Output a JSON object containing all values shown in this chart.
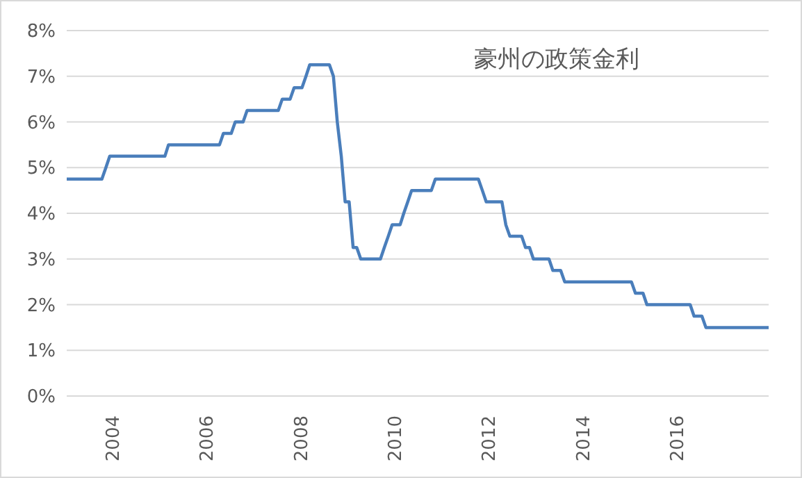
{
  "chart_data": {
    "type": "line",
    "title": "豪州の政策金利",
    "x": [
      "2003-01",
      "2003-10",
      "2003-11",
      "2003-12",
      "2005-02",
      "2005-03",
      "2006-04",
      "2006-05",
      "2006-07",
      "2006-08",
      "2006-10",
      "2006-11",
      "2007-07",
      "2007-08",
      "2007-10",
      "2007-11",
      "2008-01",
      "2008-02",
      "2008-03",
      "2008-08",
      "2008-09",
      "2008-10",
      "2008-11",
      "2008-12",
      "2009-01",
      "2009-02",
      "2009-03",
      "2009-04",
      "2009-09",
      "2009-10",
      "2009-11",
      "2009-12",
      "2010-02",
      "2010-03",
      "2010-04",
      "2010-05",
      "2010-10",
      "2010-11",
      "2011-10",
      "2011-11",
      "2011-12",
      "2012-04",
      "2012-05",
      "2012-06",
      "2012-09",
      "2012-10",
      "2012-11",
      "2012-12",
      "2013-04",
      "2013-05",
      "2013-07",
      "2013-08",
      "2015-01",
      "2015-02",
      "2015-04",
      "2015-05",
      "2016-04",
      "2016-05",
      "2016-07",
      "2016-08",
      "2017-12"
    ],
    "series": [
      {
        "color": "#4a7ebb",
        "values": [
          4.75,
          4.75,
          5.0,
          5.25,
          5.25,
          5.5,
          5.5,
          5.75,
          5.75,
          6.0,
          6.0,
          6.25,
          6.25,
          6.5,
          6.5,
          6.75,
          6.75,
          7.0,
          7.25,
          7.25,
          7.0,
          6.0,
          5.25,
          4.25,
          4.25,
          3.25,
          3.25,
          3.0,
          3.0,
          3.25,
          3.5,
          3.75,
          3.75,
          4.0,
          4.25,
          4.5,
          4.5,
          4.75,
          4.75,
          4.5,
          4.25,
          4.25,
          3.75,
          3.5,
          3.5,
          3.25,
          3.25,
          3.0,
          3.0,
          2.75,
          2.75,
          2.5,
          2.5,
          2.25,
          2.25,
          2.0,
          2.0,
          1.75,
          1.75,
          1.5,
          1.5
        ]
      }
    ],
    "xlim": [
      "2003-01",
      "2017-12"
    ],
    "xticks": [
      {
        "value": "2004",
        "label": "2004"
      },
      {
        "value": "2006",
        "label": "2006"
      },
      {
        "value": "2008",
        "label": "2008"
      },
      {
        "value": "2010",
        "label": "2010"
      },
      {
        "value": "2012",
        "label": "2012"
      },
      {
        "value": "2014",
        "label": "2014"
      },
      {
        "value": "2016",
        "label": "2016"
      }
    ],
    "ylim": [
      0,
      8
    ],
    "yticks": [
      {
        "value": 0,
        "label": "0%"
      },
      {
        "value": 1,
        "label": "1%"
      },
      {
        "value": 2,
        "label": "2%"
      },
      {
        "value": 3,
        "label": "3%"
      },
      {
        "value": 4,
        "label": "4%"
      },
      {
        "value": 5,
        "label": "5%"
      },
      {
        "value": 6,
        "label": "6%"
      },
      {
        "value": 7,
        "label": "7%"
      },
      {
        "value": 8,
        "label": "8%"
      }
    ],
    "grid": "y",
    "legend": false,
    "marker": "none",
    "line_style": "solid"
  }
}
